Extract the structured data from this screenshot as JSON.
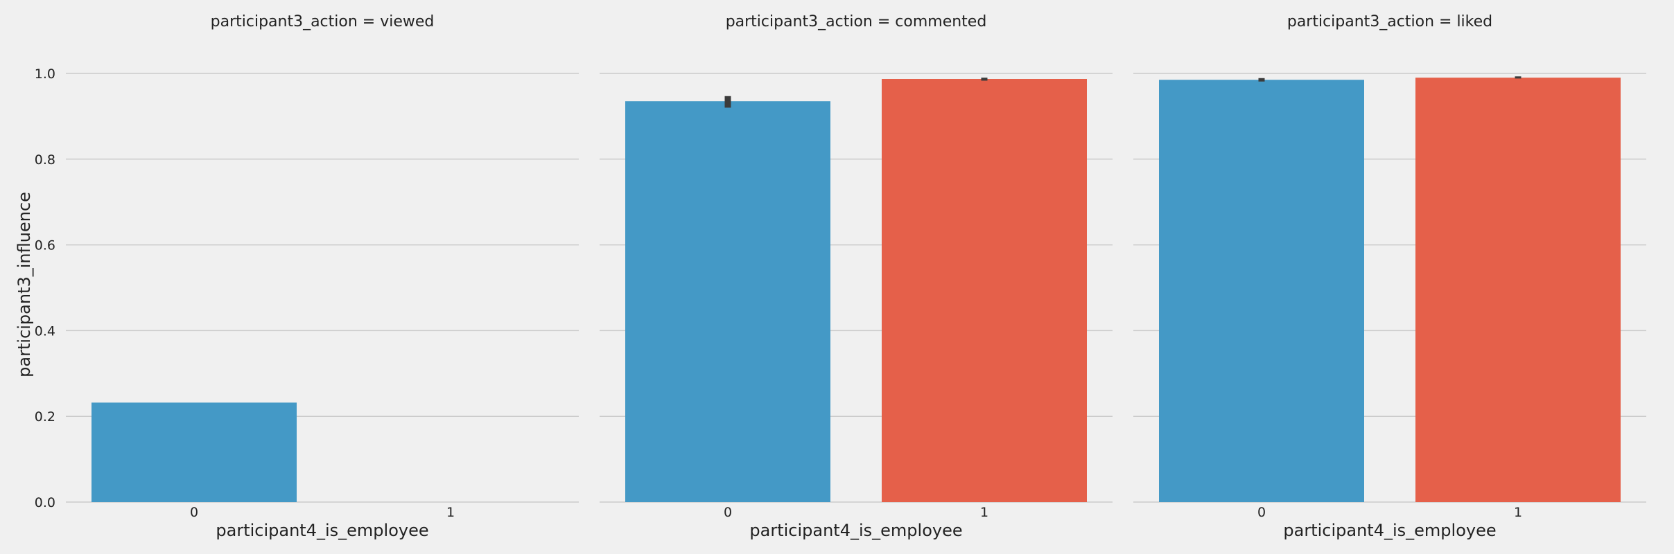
{
  "chart_data": {
    "type": "bar",
    "facet_variable": "participant3_action",
    "xlabel": "participant4_is_employee",
    "ylabel": "participant3_influence",
    "categories": [
      "0",
      "1"
    ],
    "ylim": [
      0,
      1.05
    ],
    "yticks": [
      "0.0",
      "0.2",
      "0.4",
      "0.6",
      "0.8",
      "1.0"
    ],
    "grid": "horizontal",
    "panels": [
      {
        "title": "participant3_action = viewed",
        "values": [
          0.232,
          null
        ],
        "errors": [
          [
            0.232,
            0.232
          ],
          null
        ]
      },
      {
        "title": "participant3_action = commented",
        "values": [
          0.935,
          0.987
        ],
        "errors": [
          [
            0.92,
            0.947
          ],
          [
            0.983,
            0.99
          ]
        ]
      },
      {
        "title": "participant3_action = liked",
        "values": [
          0.985,
          0.99
        ],
        "errors": [
          [
            0.981,
            0.989
          ],
          [
            0.988,
            0.993
          ]
        ]
      }
    ],
    "colors": {
      "category_0": "#4499c6",
      "category_1": "#e5604a",
      "error_bar": "#3b3b3b",
      "grid": "#cbcbcb",
      "background": "#f0f0f0"
    }
  }
}
